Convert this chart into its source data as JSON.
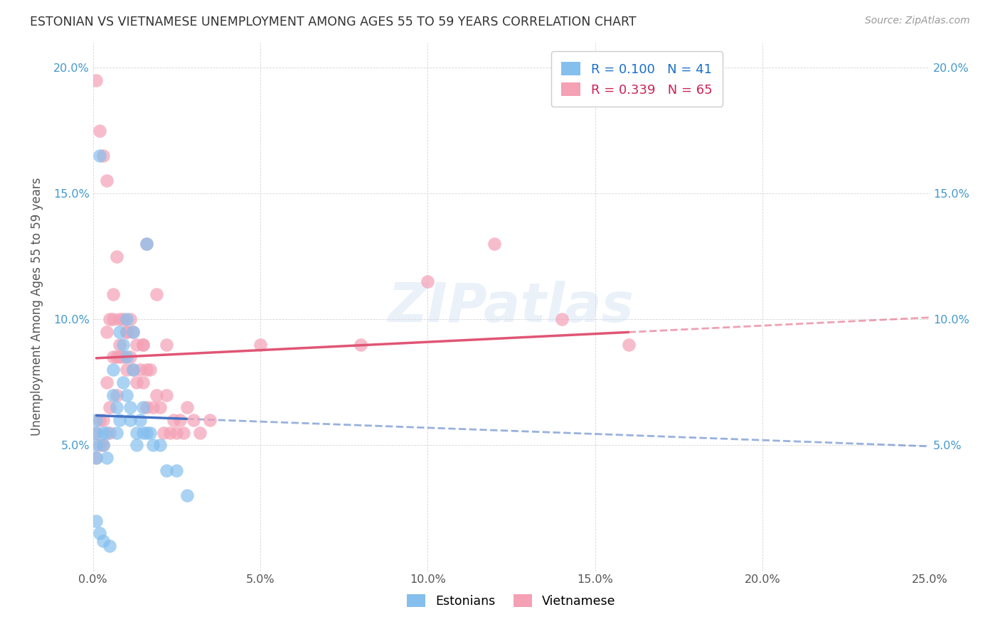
{
  "title": "ESTONIAN VS VIETNAMESE UNEMPLOYMENT AMONG AGES 55 TO 59 YEARS CORRELATION CHART",
  "source": "Source: ZipAtlas.com",
  "ylabel": "Unemployment Among Ages 55 to 59 years",
  "xlim": [
    0.0,
    0.25
  ],
  "ylim": [
    0.0,
    0.21
  ],
  "xticks": [
    0.0,
    0.05,
    0.1,
    0.15,
    0.2,
    0.25
  ],
  "yticks": [
    0.0,
    0.05,
    0.1,
    0.15,
    0.2
  ],
  "xtick_labels": [
    "0.0%",
    "5.0%",
    "10.0%",
    "15.0%",
    "20.0%",
    "25.0%"
  ],
  "ytick_labels": [
    "",
    "5.0%",
    "10.0%",
    "15.0%",
    "20.0%"
  ],
  "watermark": "ZIPatlas",
  "R_estonian": 0.1,
  "N_estonian": 41,
  "R_vietnamese": 0.339,
  "N_vietnamese": 65,
  "color_estonian": "#85bfee",
  "color_vietnamese": "#f4a0b5",
  "line_color_estonian": "#4472c4",
  "line_color_vietnamese": "#e05575",
  "legend_color_blue": "#1a6fcc",
  "legend_color_pink": "#cc2255",
  "estonian_x": [
    0.001,
    0.001,
    0.001,
    0.001,
    0.002,
    0.003,
    0.003,
    0.004,
    0.004,
    0.005,
    0.006,
    0.006,
    0.007,
    0.007,
    0.008,
    0.008,
    0.009,
    0.009,
    0.01,
    0.01,
    0.01,
    0.011,
    0.011,
    0.012,
    0.012,
    0.013,
    0.013,
    0.014,
    0.015,
    0.015,
    0.016,
    0.017,
    0.018,
    0.02,
    0.022,
    0.025,
    0.028,
    0.001,
    0.002,
    0.003,
    0.016
  ],
  "estonian_y": [
    0.06,
    0.055,
    0.05,
    0.045,
    0.165,
    0.055,
    0.05,
    0.055,
    0.045,
    0.01,
    0.08,
    0.07,
    0.065,
    0.055,
    0.095,
    0.06,
    0.09,
    0.075,
    0.1,
    0.085,
    0.07,
    0.065,
    0.06,
    0.095,
    0.08,
    0.055,
    0.05,
    0.06,
    0.065,
    0.055,
    0.055,
    0.055,
    0.05,
    0.05,
    0.04,
    0.04,
    0.03,
    0.02,
    0.015,
    0.012,
    0.13
  ],
  "vietnamese_x": [
    0.001,
    0.001,
    0.002,
    0.002,
    0.003,
    0.003,
    0.004,
    0.004,
    0.005,
    0.005,
    0.006,
    0.006,
    0.007,
    0.007,
    0.008,
    0.008,
    0.009,
    0.009,
    0.01,
    0.01,
    0.011,
    0.011,
    0.012,
    0.012,
    0.013,
    0.013,
    0.014,
    0.015,
    0.015,
    0.016,
    0.016,
    0.017,
    0.018,
    0.019,
    0.02,
    0.021,
    0.022,
    0.023,
    0.024,
    0.025,
    0.026,
    0.027,
    0.028,
    0.03,
    0.032,
    0.035,
    0.001,
    0.002,
    0.003,
    0.004,
    0.005,
    0.006,
    0.007,
    0.008,
    0.016,
    0.019,
    0.022,
    0.05,
    0.08,
    0.1,
    0.12,
    0.14,
    0.16,
    0.01,
    0.015
  ],
  "vietnamese_y": [
    0.055,
    0.045,
    0.06,
    0.05,
    0.06,
    0.05,
    0.095,
    0.075,
    0.065,
    0.055,
    0.1,
    0.085,
    0.085,
    0.07,
    0.1,
    0.085,
    0.1,
    0.085,
    0.095,
    0.08,
    0.1,
    0.085,
    0.095,
    0.08,
    0.09,
    0.075,
    0.08,
    0.09,
    0.075,
    0.08,
    0.065,
    0.08,
    0.065,
    0.07,
    0.065,
    0.055,
    0.07,
    0.055,
    0.06,
    0.055,
    0.06,
    0.055,
    0.065,
    0.06,
    0.055,
    0.06,
    0.195,
    0.175,
    0.165,
    0.155,
    0.1,
    0.11,
    0.125,
    0.09,
    0.13,
    0.11,
    0.09,
    0.09,
    0.09,
    0.115,
    0.13,
    0.1,
    0.09,
    0.095,
    0.09
  ]
}
